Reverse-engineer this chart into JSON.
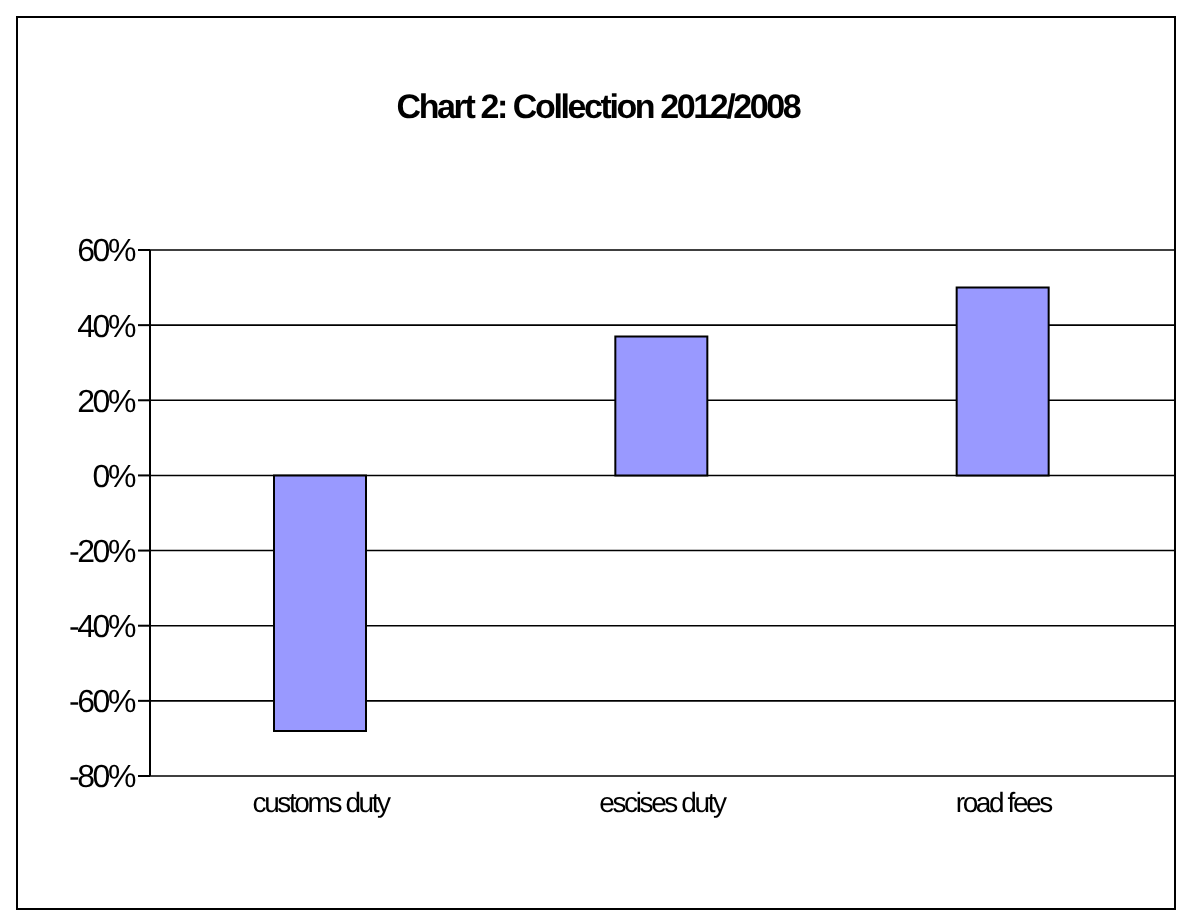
{
  "chart_data": {
    "type": "bar",
    "title": "Chart 2: Collection 2012/2008",
    "categories": [
      "customs duty",
      "escises duty",
      "road fees"
    ],
    "values": [
      -68,
      37,
      50
    ],
    "color": "#9999ff",
    "ylim": [
      -80,
      60
    ],
    "yticks": [
      {
        "value": -80,
        "label": "-80%"
      },
      {
        "value": -60,
        "label": "-60%"
      },
      {
        "value": -40,
        "label": "-40%"
      },
      {
        "value": -20,
        "label": "-20%"
      },
      {
        "value": 0,
        "label": "0%"
      },
      {
        "value": 20,
        "label": "20%"
      },
      {
        "value": 40,
        "label": "40%"
      },
      {
        "value": 60,
        "label": "60%"
      }
    ],
    "grid": "y",
    "legend": false
  }
}
